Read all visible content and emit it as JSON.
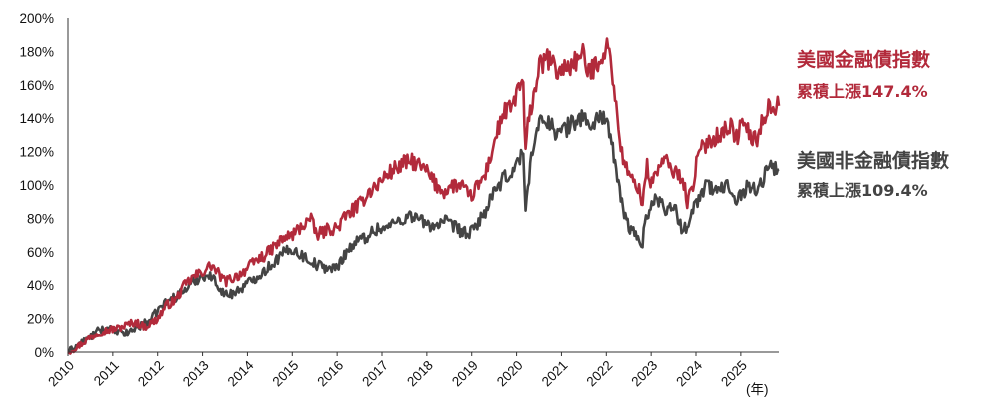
{
  "chart_data": {
    "type": "line",
    "x_unit_label": "(年)",
    "x_tick_labels": [
      "2010",
      "2011",
      "2012",
      "2013",
      "2014",
      "2015",
      "2016",
      "2017",
      "2018",
      "2019",
      "2020",
      "2021",
      "2022",
      "2023",
      "2024",
      "2025"
    ],
    "y_tick_labels": [
      "0%",
      "20%",
      "40%",
      "60%",
      "80%",
      "100%",
      "120%",
      "140%",
      "160%",
      "180%",
      "200%"
    ],
    "ylim": [
      0,
      200
    ],
    "xlim": [
      2010.0,
      2025.85
    ],
    "grid": false,
    "series": [
      {
        "name": "美國金融債指數",
        "color": "#b22a3b",
        "annotation": "累積上漲147.4%",
        "x": [
          2010.0,
          2010.2,
          2010.45,
          2010.7,
          2010.9,
          2011.1,
          2011.3,
          2011.5,
          2011.7,
          2011.85,
          2012.0,
          2012.2,
          2012.4,
          2012.6,
          2012.8,
          2013.0,
          2013.2,
          2013.35,
          2013.5,
          2013.65,
          2013.8,
          2014.0,
          2014.2,
          2014.4,
          2014.6,
          2014.8,
          2015.0,
          2015.2,
          2015.4,
          2015.55,
          2015.7,
          2015.85,
          2016.0,
          2016.15,
          2016.3,
          2016.5,
          2016.7,
          2016.9,
          2017.1,
          2017.3,
          2017.5,
          2017.7,
          2017.9,
          2018.0,
          2018.2,
          2018.4,
          2018.6,
          2018.8,
          2018.95,
          2019.1,
          2019.3,
          2019.5,
          2019.7,
          2019.9,
          2020.05,
          2020.15,
          2020.2,
          2020.25,
          2020.35,
          2020.5,
          2020.7,
          2020.9,
          2021.1,
          2021.3,
          2021.5,
          2021.6,
          2021.75,
          2021.9,
          2022.0,
          2022.1,
          2022.2,
          2022.35,
          2022.5,
          2022.7,
          2022.8,
          2022.9,
          2023.0,
          2023.15,
          2023.3,
          2023.5,
          2023.7,
          2023.8,
          2023.9,
          2024.05,
          2024.25,
          2024.45,
          2024.6,
          2024.75,
          2024.9,
          2025.05,
          2025.2,
          2025.35,
          2025.5,
          2025.6,
          2025.7,
          2025.85
        ],
        "y": [
          0,
          3,
          8,
          12,
          13,
          14,
          16,
          18,
          15,
          17,
          20,
          28,
          31,
          40,
          45,
          48,
          52,
          47,
          42,
          44,
          46,
          50,
          55,
          58,
          63,
          68,
          70,
          75,
          80,
          70,
          72,
          74,
          74,
          80,
          84,
          88,
          96,
          100,
          106,
          110,
          113,
          114,
          110,
          108,
          100,
          96,
          100,
          99,
          92,
          98,
          106,
          125,
          143,
          146,
          160,
          158,
          118,
          135,
          150,
          170,
          176,
          168,
          170,
          174,
          178,
          166,
          172,
          178,
          182,
          178,
          150,
          118,
          105,
          100,
          88,
          112,
          100,
          110,
          115,
          108,
          105,
          90,
          96,
          118,
          126,
          129,
          132,
          136,
          128,
          138,
          130,
          126,
          140,
          146,
          147,
          147.4
        ]
      },
      {
        "name": "美國非金融債指數",
        "color": "#444444",
        "annotation": "累積上漲109.4%",
        "x": [
          2010.0,
          2010.2,
          2010.45,
          2010.7,
          2010.9,
          2011.1,
          2011.3,
          2011.5,
          2011.7,
          2011.85,
          2012.0,
          2012.2,
          2012.4,
          2012.6,
          2012.8,
          2013.0,
          2013.2,
          2013.35,
          2013.5,
          2013.65,
          2013.8,
          2014.0,
          2014.2,
          2014.4,
          2014.6,
          2014.8,
          2015.0,
          2015.2,
          2015.4,
          2015.55,
          2015.7,
          2015.85,
          2016.0,
          2016.15,
          2016.3,
          2016.5,
          2016.7,
          2016.9,
          2017.1,
          2017.3,
          2017.5,
          2017.7,
          2017.9,
          2018.0,
          2018.2,
          2018.4,
          2018.6,
          2018.8,
          2018.95,
          2019.1,
          2019.3,
          2019.5,
          2019.7,
          2019.9,
          2020.05,
          2020.15,
          2020.2,
          2020.25,
          2020.35,
          2020.5,
          2020.7,
          2020.9,
          2021.1,
          2021.3,
          2021.5,
          2021.6,
          2021.75,
          2021.9,
          2022.0,
          2022.1,
          2022.2,
          2022.35,
          2022.5,
          2022.7,
          2022.8,
          2022.9,
          2023.0,
          2023.15,
          2023.3,
          2023.5,
          2023.7,
          2023.8,
          2023.9,
          2024.05,
          2024.25,
          2024.45,
          2024.6,
          2024.75,
          2024.9,
          2025.05,
          2025.2,
          2025.35,
          2025.5,
          2025.6,
          2025.7,
          2025.85
        ],
        "y": [
          0,
          4,
          8,
          13,
          14,
          12,
          11,
          14,
          17,
          19,
          25,
          30,
          33,
          37,
          42,
          46,
          45,
          40,
          34,
          35,
          37,
          41,
          45,
          49,
          54,
          59,
          62,
          58,
          55,
          52,
          51,
          50,
          50,
          58,
          63,
          67,
          70,
          74,
          74,
          78,
          80,
          82,
          78,
          76,
          76,
          78,
          75,
          72,
          70,
          76,
          84,
          95,
          103,
          108,
          115,
          120,
          82,
          100,
          122,
          136,
          140,
          130,
          134,
          138,
          142,
          134,
          138,
          142,
          140,
          128,
          110,
          88,
          75,
          68,
          65,
          82,
          88,
          92,
          86,
          88,
          72,
          76,
          84,
          92,
          100,
          96,
          98,
          100,
          92,
          96,
          100,
          96,
          104,
          110,
          111,
          109.4
        ]
      }
    ]
  }
}
